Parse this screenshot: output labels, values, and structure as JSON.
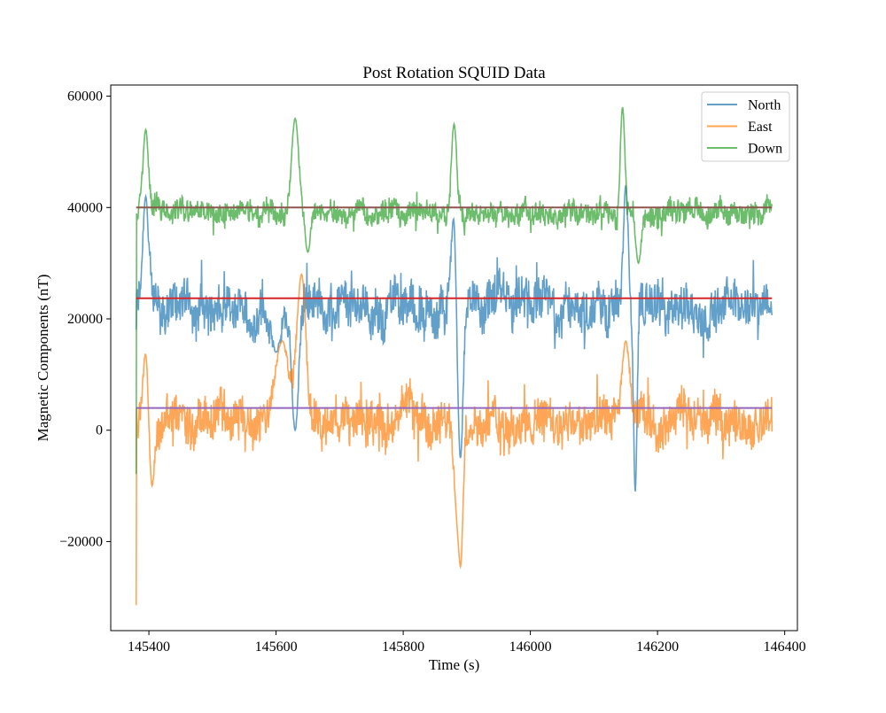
{
  "chart_data": {
    "type": "line",
    "title": "Post Rotation SQUID Data",
    "xlabel": "Time (s)",
    "ylabel": "Magnetic Components (nT)",
    "xlim": [
      145340,
      146420
    ],
    "ylim": [
      -36000,
      62000
    ],
    "x_ticks": [
      145400,
      145600,
      145800,
      146000,
      146200,
      146400
    ],
    "y_ticks": [
      -20000,
      0,
      20000,
      40000,
      60000
    ],
    "x_tick_labels": [
      "145400",
      "145600",
      "145800",
      "146000",
      "146200",
      "146400"
    ],
    "y_tick_labels": [
      "−20000",
      "0",
      "20000",
      "40000",
      "60000"
    ],
    "grid": false,
    "legend_position": "top-right",
    "x_range": [
      145380,
      146380
    ],
    "series": [
      {
        "name": "North",
        "color": "#1f77b4",
        "baseline": 22000,
        "amplitude": 3500,
        "start_value": 18000,
        "events": [
          {
            "x": 145395,
            "value": 42000,
            "width": 6
          },
          {
            "x": 145600,
            "value": 14000,
            "width": 10
          },
          {
            "x": 145630,
            "value": 0,
            "width": 8
          },
          {
            "x": 145880,
            "value": 40000,
            "width": 6
          },
          {
            "x": 145890,
            "value": -5000,
            "width": 6
          },
          {
            "x": 146150,
            "value": 44000,
            "width": 5
          },
          {
            "x": 146165,
            "value": -11000,
            "width": 4
          }
        ],
        "y": [
          22000,
          21500,
          23000,
          22500,
          21000,
          22000,
          23500,
          22000,
          21500,
          22500
        ]
      },
      {
        "name": "East",
        "color": "#ff7f0e",
        "baseline": 2000,
        "amplitude": 3500,
        "start_value": -31500,
        "events": [
          {
            "x": 145395,
            "value": 14000,
            "width": 6
          },
          {
            "x": 145405,
            "value": -10000,
            "width": 5
          },
          {
            "x": 145610,
            "value": 16000,
            "width": 15
          },
          {
            "x": 145640,
            "value": 28000,
            "width": 10
          },
          {
            "x": 145885,
            "value": -14000,
            "width": 8
          },
          {
            "x": 145890,
            "value": -24500,
            "width": 5
          },
          {
            "x": 146150,
            "value": 16000,
            "width": 8
          }
        ],
        "y": [
          2000,
          1500,
          3000,
          2500,
          1000,
          2000,
          3500,
          2000,
          1500,
          2500
        ]
      },
      {
        "name": "Down",
        "color": "#2ca02c",
        "baseline": 39000,
        "amplitude": 1800,
        "start_value": -8000,
        "events": [
          {
            "x": 145395,
            "value": 54000,
            "width": 6
          },
          {
            "x": 145630,
            "value": 56000,
            "width": 8
          },
          {
            "x": 145650,
            "value": 32000,
            "width": 6
          },
          {
            "x": 145880,
            "value": 55000,
            "width": 6
          },
          {
            "x": 146145,
            "value": 58000,
            "width": 5
          },
          {
            "x": 146170,
            "value": 30000,
            "width": 6
          }
        ],
        "y": [
          39000,
          38500,
          40000,
          39500,
          38000,
          39000,
          40500,
          39000,
          38500,
          39500
        ]
      }
    ],
    "reference_lines": [
      {
        "y": 40000,
        "color": "#8c564b"
      },
      {
        "y": 23700,
        "color": "#d62728"
      },
      {
        "y": 4000,
        "color": "#9467bd"
      }
    ]
  }
}
